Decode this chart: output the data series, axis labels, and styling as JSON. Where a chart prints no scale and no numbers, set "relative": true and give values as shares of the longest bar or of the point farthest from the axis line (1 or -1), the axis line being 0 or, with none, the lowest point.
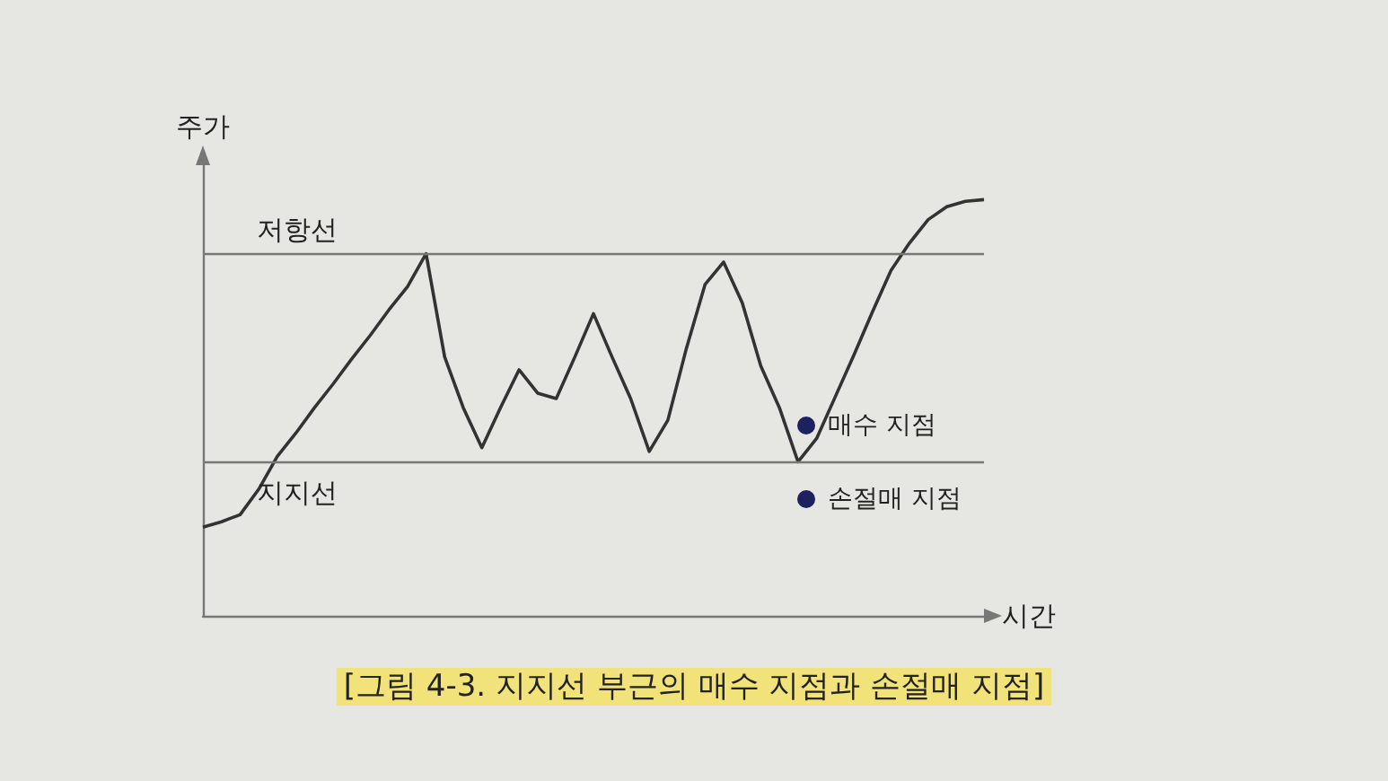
{
  "chart_data": {
    "type": "line",
    "relative": true,
    "xlabel": "시간",
    "ylabel": "주가",
    "categories": [
      null,
      null,
      null,
      null,
      null,
      null,
      null,
      null,
      null,
      null,
      null,
      null,
      null,
      null,
      null,
      null,
      null,
      null,
      null,
      null,
      null,
      null,
      null,
      null,
      null,
      null,
      null,
      null,
      null,
      null,
      null,
      null,
      null,
      null,
      null,
      null,
      null,
      null,
      null,
      null,
      null,
      null,
      null
    ],
    "series": [
      {
        "type": "line",
        "color": "#333333",
        "marker": "none",
        "values": [
          0.213,
          0.226,
          0.243,
          0.304,
          0.383,
          0.439,
          0.5,
          0.557,
          0.617,
          0.674,
          0.735,
          0.791,
          0.87,
          0.622,
          0.5,
          0.404,
          0.5,
          0.591,
          0.535,
          0.522,
          0.622,
          0.726,
          0.622,
          0.522,
          0.395,
          0.47,
          0.643,
          0.796,
          0.85,
          0.752,
          0.6,
          0.5,
          0.37,
          0.426,
          0.526,
          0.626,
          0.73,
          0.83,
          0.896,
          0.952,
          0.983,
          0.996,
          1
        ]
      }
    ],
    "ref_lines": [
      {
        "axis": "y",
        "value": 0.87,
        "label": "저항선",
        "color": "#777777"
      },
      {
        "axis": "y",
        "value": 0.37,
        "label": "지지선",
        "color": "#777777"
      }
    ],
    "annotations": [
      "매수 지점",
      "손절매 지점",
      "[그림 4-3. 지지선 부근의 매수 지점과 손절매 지점]"
    ],
    "grid": false
  }
}
